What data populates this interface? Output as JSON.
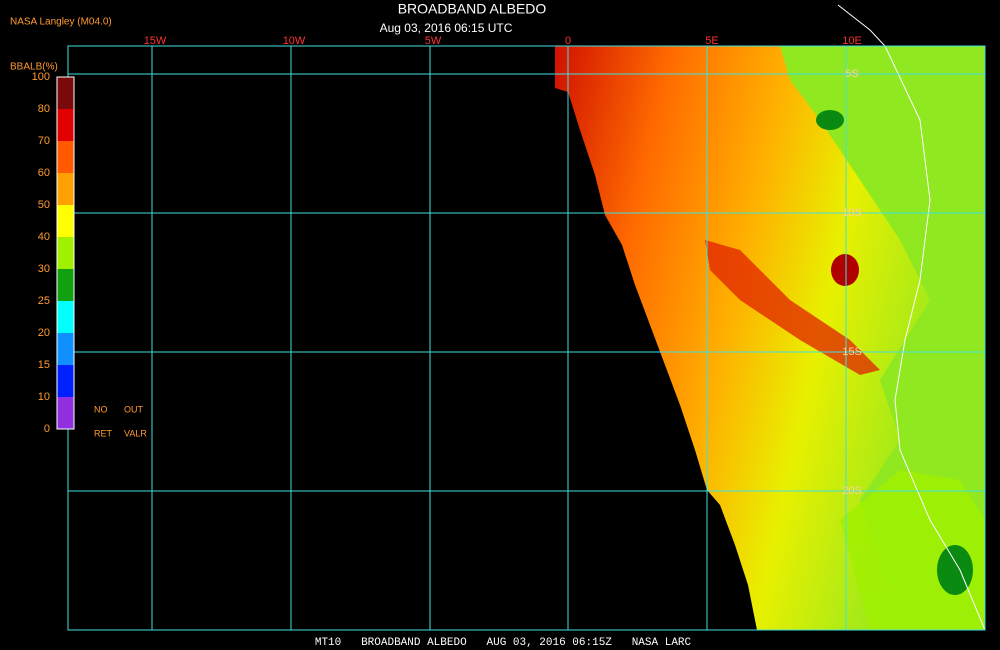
{
  "header": {
    "title": "BROADBAND ALBEDO",
    "subtitle": "Aug 03, 2016 06:15 UTC",
    "source": "NASA Langley (M04.0)"
  },
  "map": {
    "longitude_labels": [
      "15W",
      "10W",
      "5W",
      "0",
      "5E",
      "10E"
    ],
    "latitude_labels": [
      "5S",
      "10S",
      "15S",
      "20S"
    ]
  },
  "colorbar": {
    "title": "BBALB(%)",
    "labels": [
      "100",
      "80",
      "70",
      "60",
      "50",
      "40",
      "30",
      "25",
      "20",
      "15",
      "10",
      "0"
    ],
    "colors": [
      "#7a0a0a",
      "#e00000",
      "#ff5a00",
      "#ffa000",
      "#ffff00",
      "#a0f000",
      "#10a010",
      "#00ffff",
      "#1090ff",
      "#0020ff",
      "#9030e0"
    ],
    "notes": [
      "NO",
      "OUT",
      "RET",
      "VALR"
    ]
  },
  "footer": "MT10   BROADBAND ALBEDO   AUG 03, 2016 06:15Z   NASA LARC"
}
